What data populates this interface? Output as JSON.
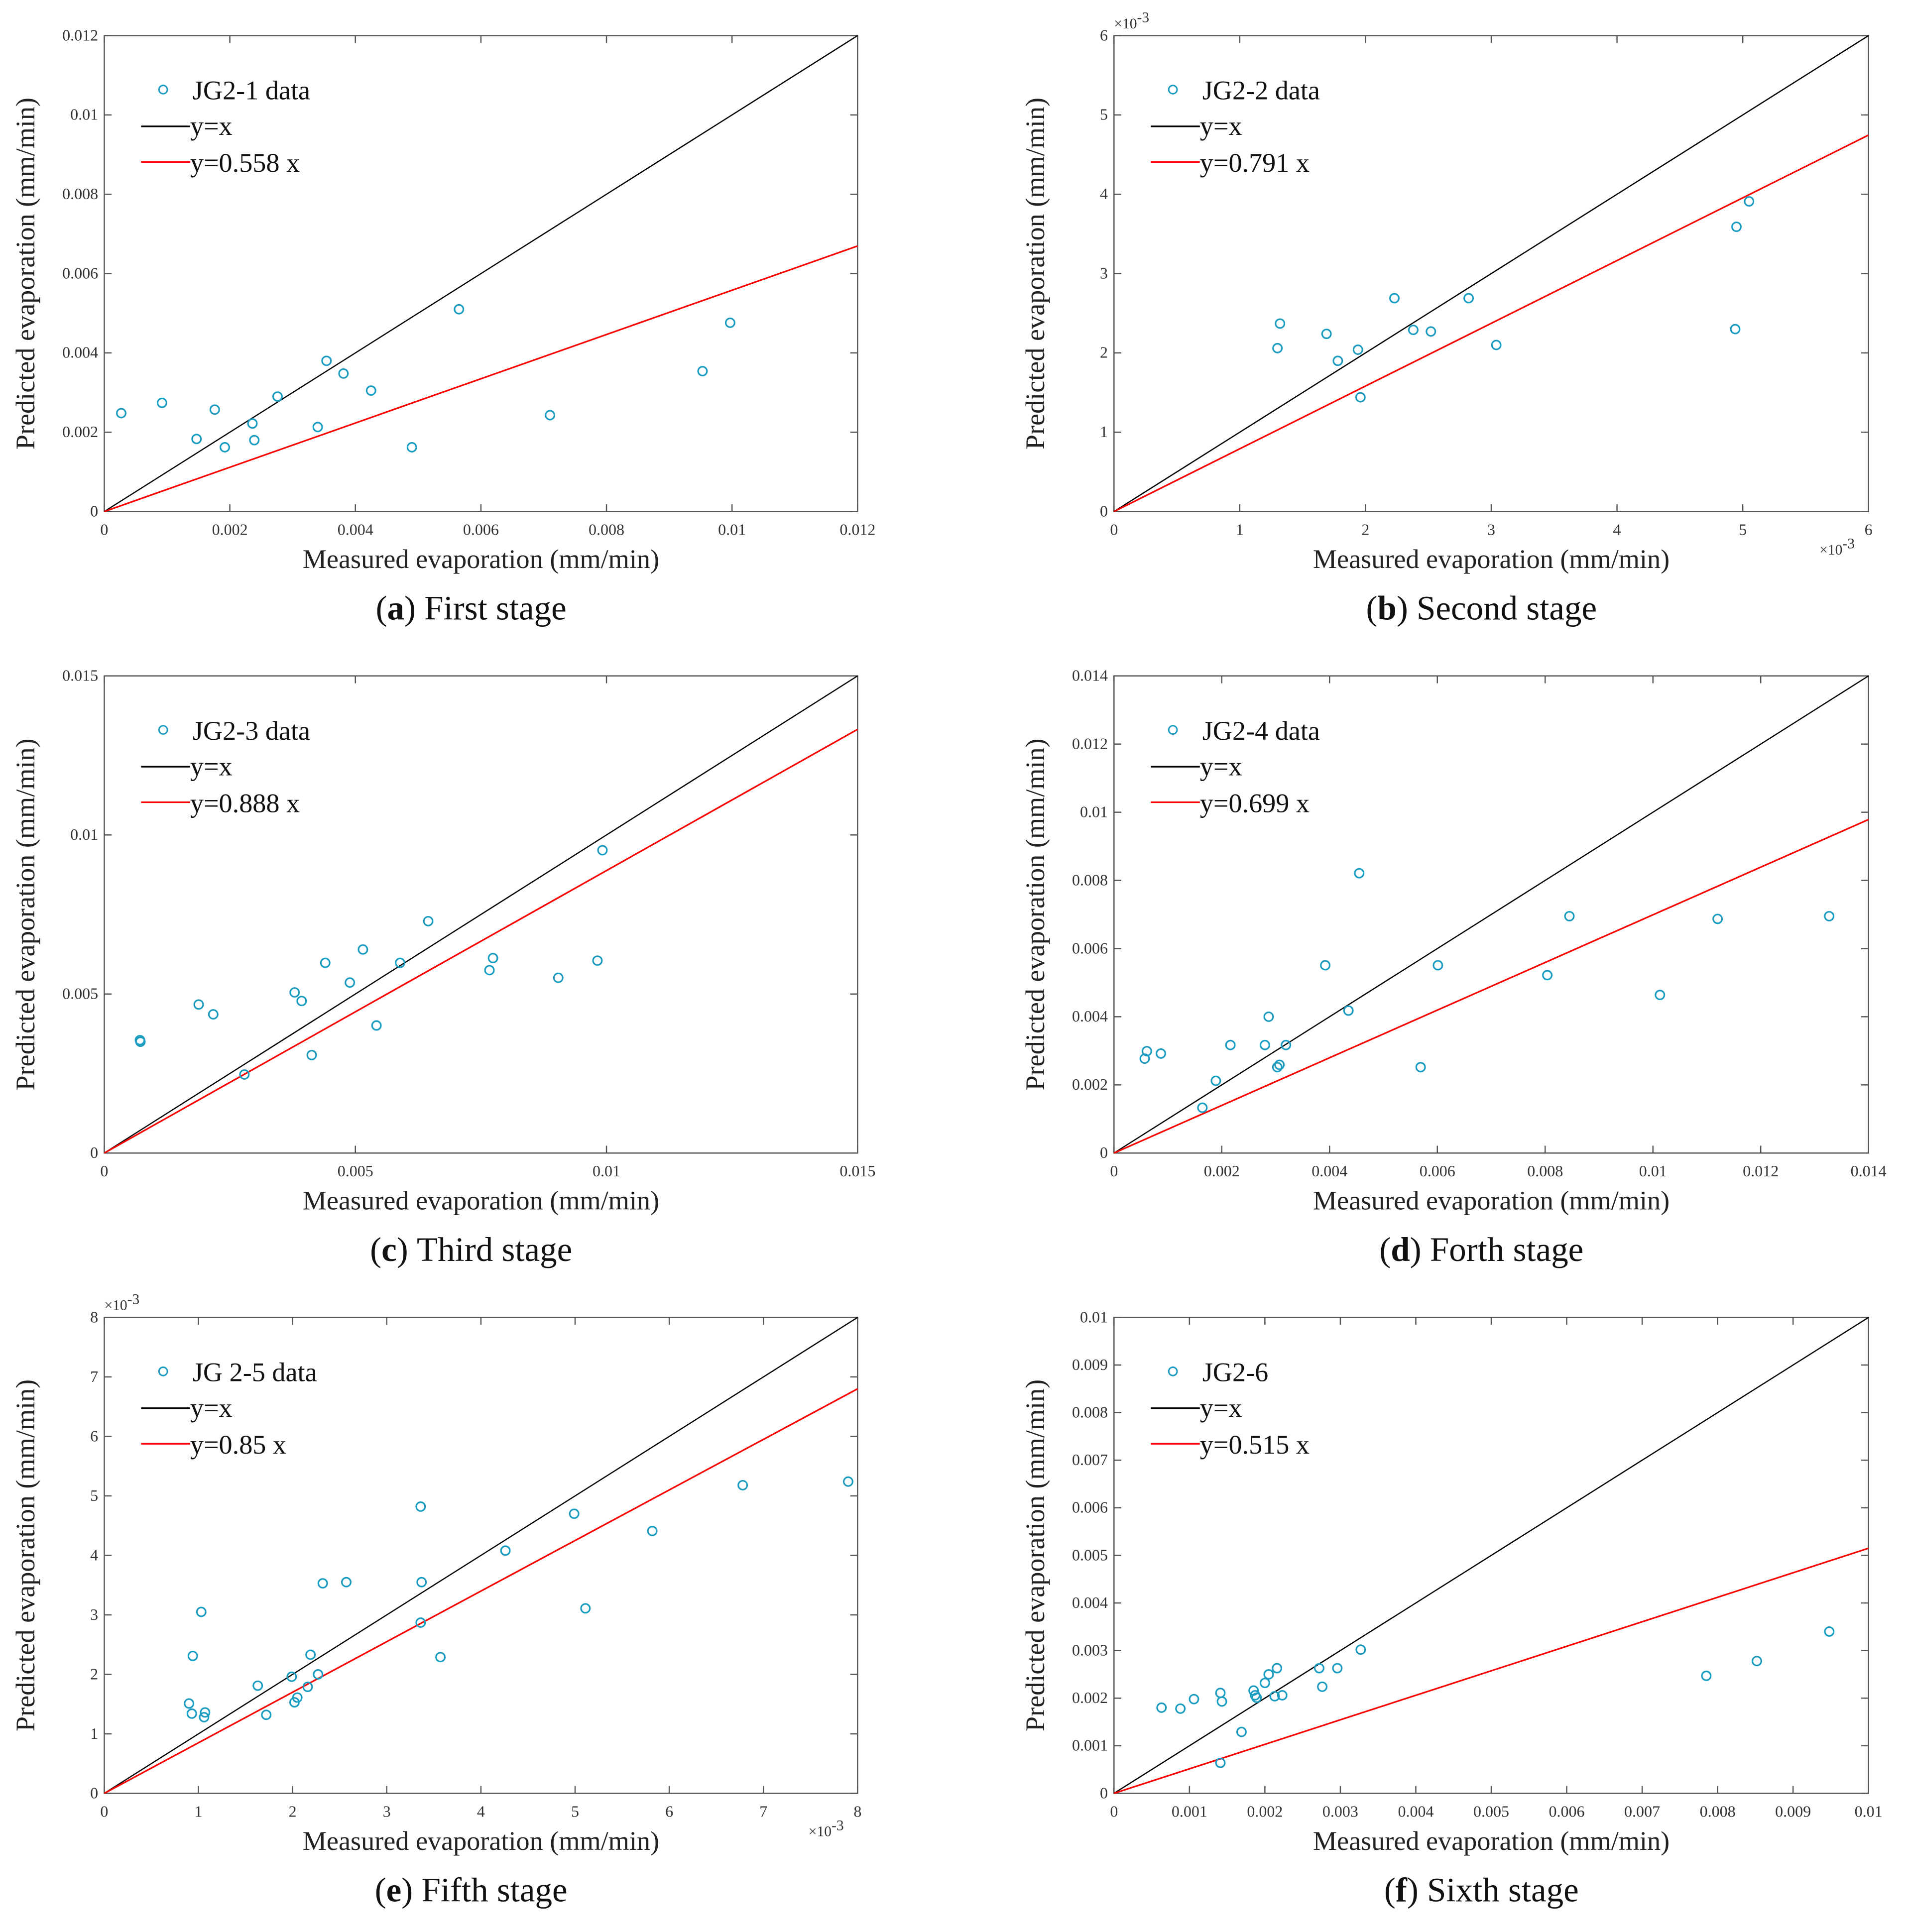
{
  "colors": {
    "data": "#1a9cc0",
    "identity": "#000000",
    "fit": "#ff0000"
  },
  "chart_data": [
    {
      "type": "scatter",
      "panel": "a",
      "caption_letter": "a",
      "caption_text": "First stage",
      "xlabel": "Measured evaporation (mm/min)",
      "ylabel": "Predicted evaporation (mm/min)",
      "xlim": [
        0,
        0.012
      ],
      "ylim": [
        0,
        0.012
      ],
      "xticks": [
        "0",
        "0.002",
        "0.004",
        "0.006",
        "0.008",
        "0.01",
        "0.012"
      ],
      "yticks": [
        "0",
        "0.002",
        "0.004",
        "0.006",
        "0.008",
        "0.01",
        "0.012"
      ],
      "exponent_label": "",
      "legend": [
        "JG2-1 data",
        "y=x",
        "y=0.558 x"
      ],
      "legend_placement": "top-left",
      "fit_slope": 0.558,
      "points": [
        [
          0.00027,
          0.00248
        ],
        [
          0.00092,
          0.00274
        ],
        [
          0.00147,
          0.00183
        ],
        [
          0.00176,
          0.00257
        ],
        [
          0.00192,
          0.00162
        ],
        [
          0.00236,
          0.00222
        ],
        [
          0.00239,
          0.0018
        ],
        [
          0.00276,
          0.0029
        ],
        [
          0.0034,
          0.00213
        ],
        [
          0.00354,
          0.0038
        ],
        [
          0.00381,
          0.00348
        ],
        [
          0.00425,
          0.00305
        ],
        [
          0.0049,
          0.00162
        ],
        [
          0.00565,
          0.0051
        ],
        [
          0.0071,
          0.00243
        ],
        [
          0.00953,
          0.00354
        ],
        [
          0.00997,
          0.00476
        ]
      ]
    },
    {
      "type": "scatter",
      "panel": "b",
      "caption_letter": "b",
      "caption_text": "Second stage",
      "xlabel": "Measured evaporation (mm/min)",
      "ylabel": "Predicted evaporation (mm/min)",
      "xlim": [
        0,
        6
      ],
      "ylim": [
        0,
        6
      ],
      "xticks": [
        "0",
        "1",
        "2",
        "3",
        "4",
        "5",
        "6"
      ],
      "yticks": [
        "0",
        "1",
        "2",
        "3",
        "4",
        "5",
        "6"
      ],
      "exponent_label": "×10-3",
      "legend": [
        "JG2-2 data",
        "y=x",
        "y=0.791 x"
      ],
      "legend_placement": "top-left",
      "fit_slope": 0.791,
      "points": [
        [
          1.32,
          2.37
        ],
        [
          1.3,
          2.06
        ],
        [
          1.69,
          2.24
        ],
        [
          1.78,
          1.9
        ],
        [
          1.94,
          2.04
        ],
        [
          1.96,
          1.44
        ],
        [
          2.23,
          2.69
        ],
        [
          2.38,
          2.29
        ],
        [
          2.52,
          2.27
        ],
        [
          2.82,
          2.69
        ],
        [
          3.04,
          2.1
        ],
        [
          4.95,
          3.59
        ],
        [
          4.94,
          2.3
        ],
        [
          5.05,
          3.91
        ]
      ]
    },
    {
      "type": "scatter",
      "panel": "c",
      "caption_letter": "c",
      "caption_text": "Third stage",
      "xlabel": "Measured evaporation (mm/min)",
      "ylabel": "Predicted evaporation (mm/min)",
      "xlim": [
        0,
        0.015
      ],
      "ylim": [
        0,
        0.015
      ],
      "xticks": [
        "0",
        "0.005",
        "0.01",
        "0.015"
      ],
      "yticks": [
        "0",
        "0.005",
        "0.01",
        "0.015"
      ],
      "exponent_label": "",
      "legend": [
        "JG2-3 data",
        "y=x",
        "y=0.888 x"
      ],
      "legend_placement": "top-left",
      "fit_slope": 0.888,
      "points": [
        [
          0.00071,
          0.00355
        ],
        [
          0.00072,
          0.0035
        ],
        [
          0.00188,
          0.00467
        ],
        [
          0.00217,
          0.00436
        ],
        [
          0.00279,
          0.00247
        ],
        [
          0.00379,
          0.00505
        ],
        [
          0.00393,
          0.00478
        ],
        [
          0.00413,
          0.00308
        ],
        [
          0.0044,
          0.00598
        ],
        [
          0.00489,
          0.00536
        ],
        [
          0.00515,
          0.0064
        ],
        [
          0.00542,
          0.00401
        ],
        [
          0.00589,
          0.00598
        ],
        [
          0.00645,
          0.00729
        ],
        [
          0.00767,
          0.00575
        ],
        [
          0.00774,
          0.00613
        ],
        [
          0.00904,
          0.00551
        ],
        [
          0.00982,
          0.00605
        ],
        [
          0.00992,
          0.00952
        ]
      ]
    },
    {
      "type": "scatter",
      "panel": "d",
      "caption_letter": "d",
      "caption_text": "Forth stage",
      "xlabel": "Measured evaporation (mm/min)",
      "ylabel": "Predicted evaporation (mm/min)",
      "xlim": [
        0,
        0.014
      ],
      "ylim": [
        0,
        0.014
      ],
      "xticks": [
        "0",
        "0.002",
        "0.004",
        "0.006",
        "0.008",
        "0.01",
        "0.012",
        "0.014"
      ],
      "yticks": [
        "0",
        "0.002",
        "0.004",
        "0.006",
        "0.008",
        "0.01",
        "0.012",
        "0.014"
      ],
      "exponent_label": "",
      "legend": [
        "JG2-4 data",
        "y=x",
        "y=0.699 x"
      ],
      "legend_placement": "top-left",
      "fit_slope": 0.699,
      "points": [
        [
          0.00057,
          0.00277
        ],
        [
          0.00061,
          0.00299
        ],
        [
          0.00087,
          0.00292
        ],
        [
          0.00164,
          0.00133
        ],
        [
          0.00189,
          0.00212
        ],
        [
          0.00216,
          0.00317
        ],
        [
          0.0028,
          0.00317
        ],
        [
          0.00287,
          0.004
        ],
        [
          0.00303,
          0.00252
        ],
        [
          0.00307,
          0.00259
        ],
        [
          0.00319,
          0.00317
        ],
        [
          0.00392,
          0.00551
        ],
        [
          0.00435,
          0.00418
        ],
        [
          0.00455,
          0.00821
        ],
        [
          0.00569,
          0.00252
        ],
        [
          0.00601,
          0.00551
        ],
        [
          0.00804,
          0.00522
        ],
        [
          0.00845,
          0.00695
        ],
        [
          0.01013,
          0.00464
        ],
        [
          0.0112,
          0.00687
        ],
        [
          0.01327,
          0.00695
        ]
      ]
    },
    {
      "type": "scatter",
      "panel": "e",
      "caption_letter": "e",
      "caption_text": "Fifth stage",
      "xlabel": "Measured evaporation (mm/min)",
      "ylabel": "Predicted evaporation (mm/min)",
      "xlim": [
        0,
        8
      ],
      "ylim": [
        0,
        8
      ],
      "xticks": [
        "0",
        "1",
        "2",
        "3",
        "4",
        "5",
        "6",
        "7",
        "8"
      ],
      "yticks": [
        "0",
        "1",
        "2",
        "3",
        "4",
        "5",
        "6",
        "7",
        "8"
      ],
      "exponent_label": "×10-3",
      "legend": [
        "JG 2-5 data",
        "y=x",
        "y=0.85 x"
      ],
      "legend_placement": "top-left",
      "fit_slope": 0.85,
      "points": [
        [
          0.9,
          1.51
        ],
        [
          0.93,
          1.34
        ],
        [
          0.94,
          2.31
        ],
        [
          1.03,
          3.05
        ],
        [
          1.06,
          1.28
        ],
        [
          1.07,
          1.36
        ],
        [
          1.63,
          1.81
        ],
        [
          1.72,
          1.32
        ],
        [
          1.99,
          1.96
        ],
        [
          2.02,
          1.53
        ],
        [
          2.05,
          1.61
        ],
        [
          2.16,
          1.79
        ],
        [
          2.19,
          2.33
        ],
        [
          2.27,
          2.0
        ],
        [
          2.32,
          3.53
        ],
        [
          2.57,
          3.55
        ],
        [
          3.36,
          4.82
        ],
        [
          3.36,
          2.87
        ],
        [
          3.37,
          3.55
        ],
        [
          3.57,
          2.29
        ],
        [
          4.26,
          4.08
        ],
        [
          4.99,
          4.7
        ],
        [
          5.11,
          3.11
        ],
        [
          5.82,
          4.41
        ],
        [
          6.78,
          5.18
        ],
        [
          7.9,
          5.24
        ]
      ]
    },
    {
      "type": "scatter",
      "panel": "f",
      "caption_letter": "f",
      "caption_text": "Sixth stage",
      "xlabel": "Measured evaporation (mm/min)",
      "ylabel": "Predicted evaporation (mm/min)",
      "xlim": [
        0,
        0.01
      ],
      "ylim": [
        0,
        0.01
      ],
      "xticks": [
        "0",
        "0.001",
        "0.002",
        "0.003",
        "0.004",
        "0.005",
        "0.006",
        "0.007",
        "0.008",
        "0.009",
        "0.01"
      ],
      "yticks": [
        "0",
        "0.001",
        "0.002",
        "0.003",
        "0.004",
        "0.005",
        "0.006",
        "0.007",
        "0.008",
        "0.009",
        "0.01"
      ],
      "exponent_label": "",
      "legend": [
        "JG2-6",
        "y=x",
        "y=0.515 x"
      ],
      "legend_placement": "top-left",
      "fit_slope": 0.515,
      "points": [
        [
          0.00063,
          0.0018
        ],
        [
          0.00088,
          0.00178
        ],
        [
          0.00106,
          0.00198
        ],
        [
          0.00141,
          0.00211
        ],
        [
          0.00143,
          0.00193
        ],
        [
          0.00141,
          0.00064
        ],
        [
          0.00169,
          0.00129
        ],
        [
          0.00185,
          0.00216
        ],
        [
          0.00187,
          0.00206
        ],
        [
          0.00189,
          0.00201
        ],
        [
          0.002,
          0.00232
        ],
        [
          0.00205,
          0.0025
        ],
        [
          0.00213,
          0.00204
        ],
        [
          0.00216,
          0.00263
        ],
        [
          0.00223,
          0.00206
        ],
        [
          0.00272,
          0.00263
        ],
        [
          0.00276,
          0.00224
        ],
        [
          0.00296,
          0.00263
        ],
        [
          0.00327,
          0.00302
        ],
        [
          0.00785,
          0.00247
        ],
        [
          0.00852,
          0.00278
        ],
        [
          0.00948,
          0.0034
        ]
      ]
    }
  ]
}
